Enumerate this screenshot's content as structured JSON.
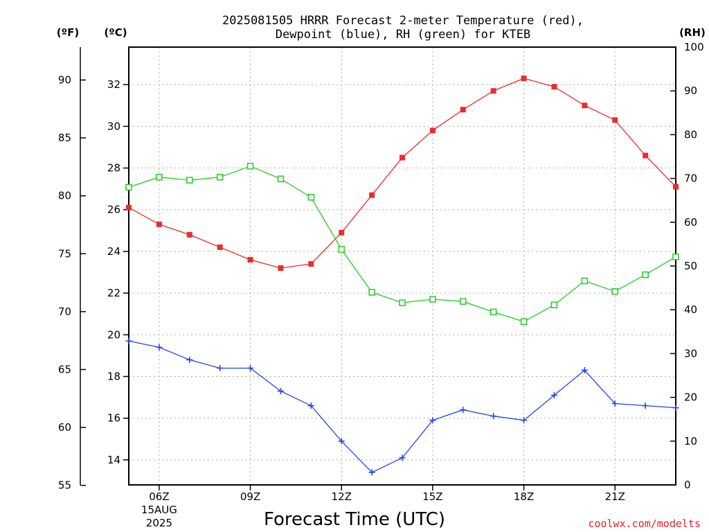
{
  "chart_data": {
    "type": "line",
    "title_line1": "2025081505 HRRR Forecast 2-meter Temperature (red),",
    "title_line2": "Dewpoint (blue), RH (green) for KTEB",
    "axis_units": {
      "fahrenheit": "(ºF)",
      "celsius": "(ºC)",
      "rh": "(RH)"
    },
    "xlabel": "Forecast Time (UTC)",
    "credit": "coolwx.com/modelts",
    "x_hours": [
      5,
      6,
      7,
      8,
      9,
      10,
      11,
      12,
      13,
      14,
      15,
      16,
      17,
      18,
      19,
      20,
      21,
      22,
      23
    ],
    "x_ticks": [
      {
        "hour": 6,
        "label": "06Z",
        "date_line1": "15AUG",
        "date_line2": "2025"
      },
      {
        "hour": 9,
        "label": "09Z"
      },
      {
        "hour": 12,
        "label": "12Z"
      },
      {
        "hour": 15,
        "label": "15Z"
      },
      {
        "hour": 18,
        "label": "18Z"
      },
      {
        "hour": 21,
        "label": "21Z"
      }
    ],
    "xlim": [
      5,
      23
    ],
    "celsius_ticks": [
      "14",
      "16",
      "18",
      "20",
      "22",
      "24",
      "26",
      "28",
      "30",
      "32"
    ],
    "fahrenheit_ticks": [
      "55",
      "60",
      "65",
      "70",
      "75",
      "80",
      "85",
      "90"
    ],
    "rh_ticks": [
      "0",
      "10",
      "20",
      "30",
      "40",
      "50",
      "60",
      "70",
      "80",
      "90",
      "100"
    ],
    "celsius_lim": [
      12.8,
      33.8
    ],
    "rh_lim": [
      0,
      100
    ],
    "grid": true,
    "series": [
      {
        "name": "Temperature",
        "axis": "celsius",
        "color": "#ee2b2b",
        "marker": "filled-square",
        "values": [
          26.1,
          25.3,
          24.8,
          24.2,
          23.6,
          23.2,
          23.4,
          24.9,
          26.7,
          28.5,
          29.8,
          30.8,
          31.7,
          32.3,
          31.9,
          31.0,
          30.3,
          28.6,
          27.1
        ]
      },
      {
        "name": "Dewpoint",
        "axis": "celsius",
        "color": "#2244ee",
        "marker": "plus",
        "values": [
          19.7,
          19.4,
          18.8,
          18.4,
          18.4,
          17.3,
          16.6,
          14.9,
          13.4,
          14.1,
          15.9,
          16.4,
          16.1,
          15.9,
          17.1,
          18.3,
          16.7,
          16.6,
          16.5
        ]
      },
      {
        "name": "RH",
        "axis": "rh",
        "color": "#22cc22",
        "marker": "open-square",
        "values": [
          68.0,
          70.3,
          69.6,
          70.3,
          72.8,
          69.9,
          65.7,
          53.8,
          44.0,
          41.6,
          42.4,
          41.9,
          39.5,
          37.3,
          41.1,
          46.6,
          44.2,
          48.0,
          52.1
        ]
      }
    ]
  }
}
